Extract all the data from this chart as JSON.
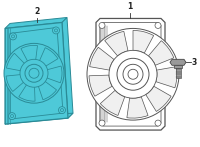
{
  "bg_color": "#ffffff",
  "blue_fill": "#4ec9d8",
  "blue_edge": "#2a8a96",
  "outline_fill": "#ffffff",
  "outline_edge": "#555555",
  "bolt_fill": "#999999",
  "bolt_edge": "#444444",
  "label_color": "#222222",
  "label_fontsize": 5.5,
  "fig_width": 2.0,
  "fig_height": 1.47,
  "dpi": 100
}
